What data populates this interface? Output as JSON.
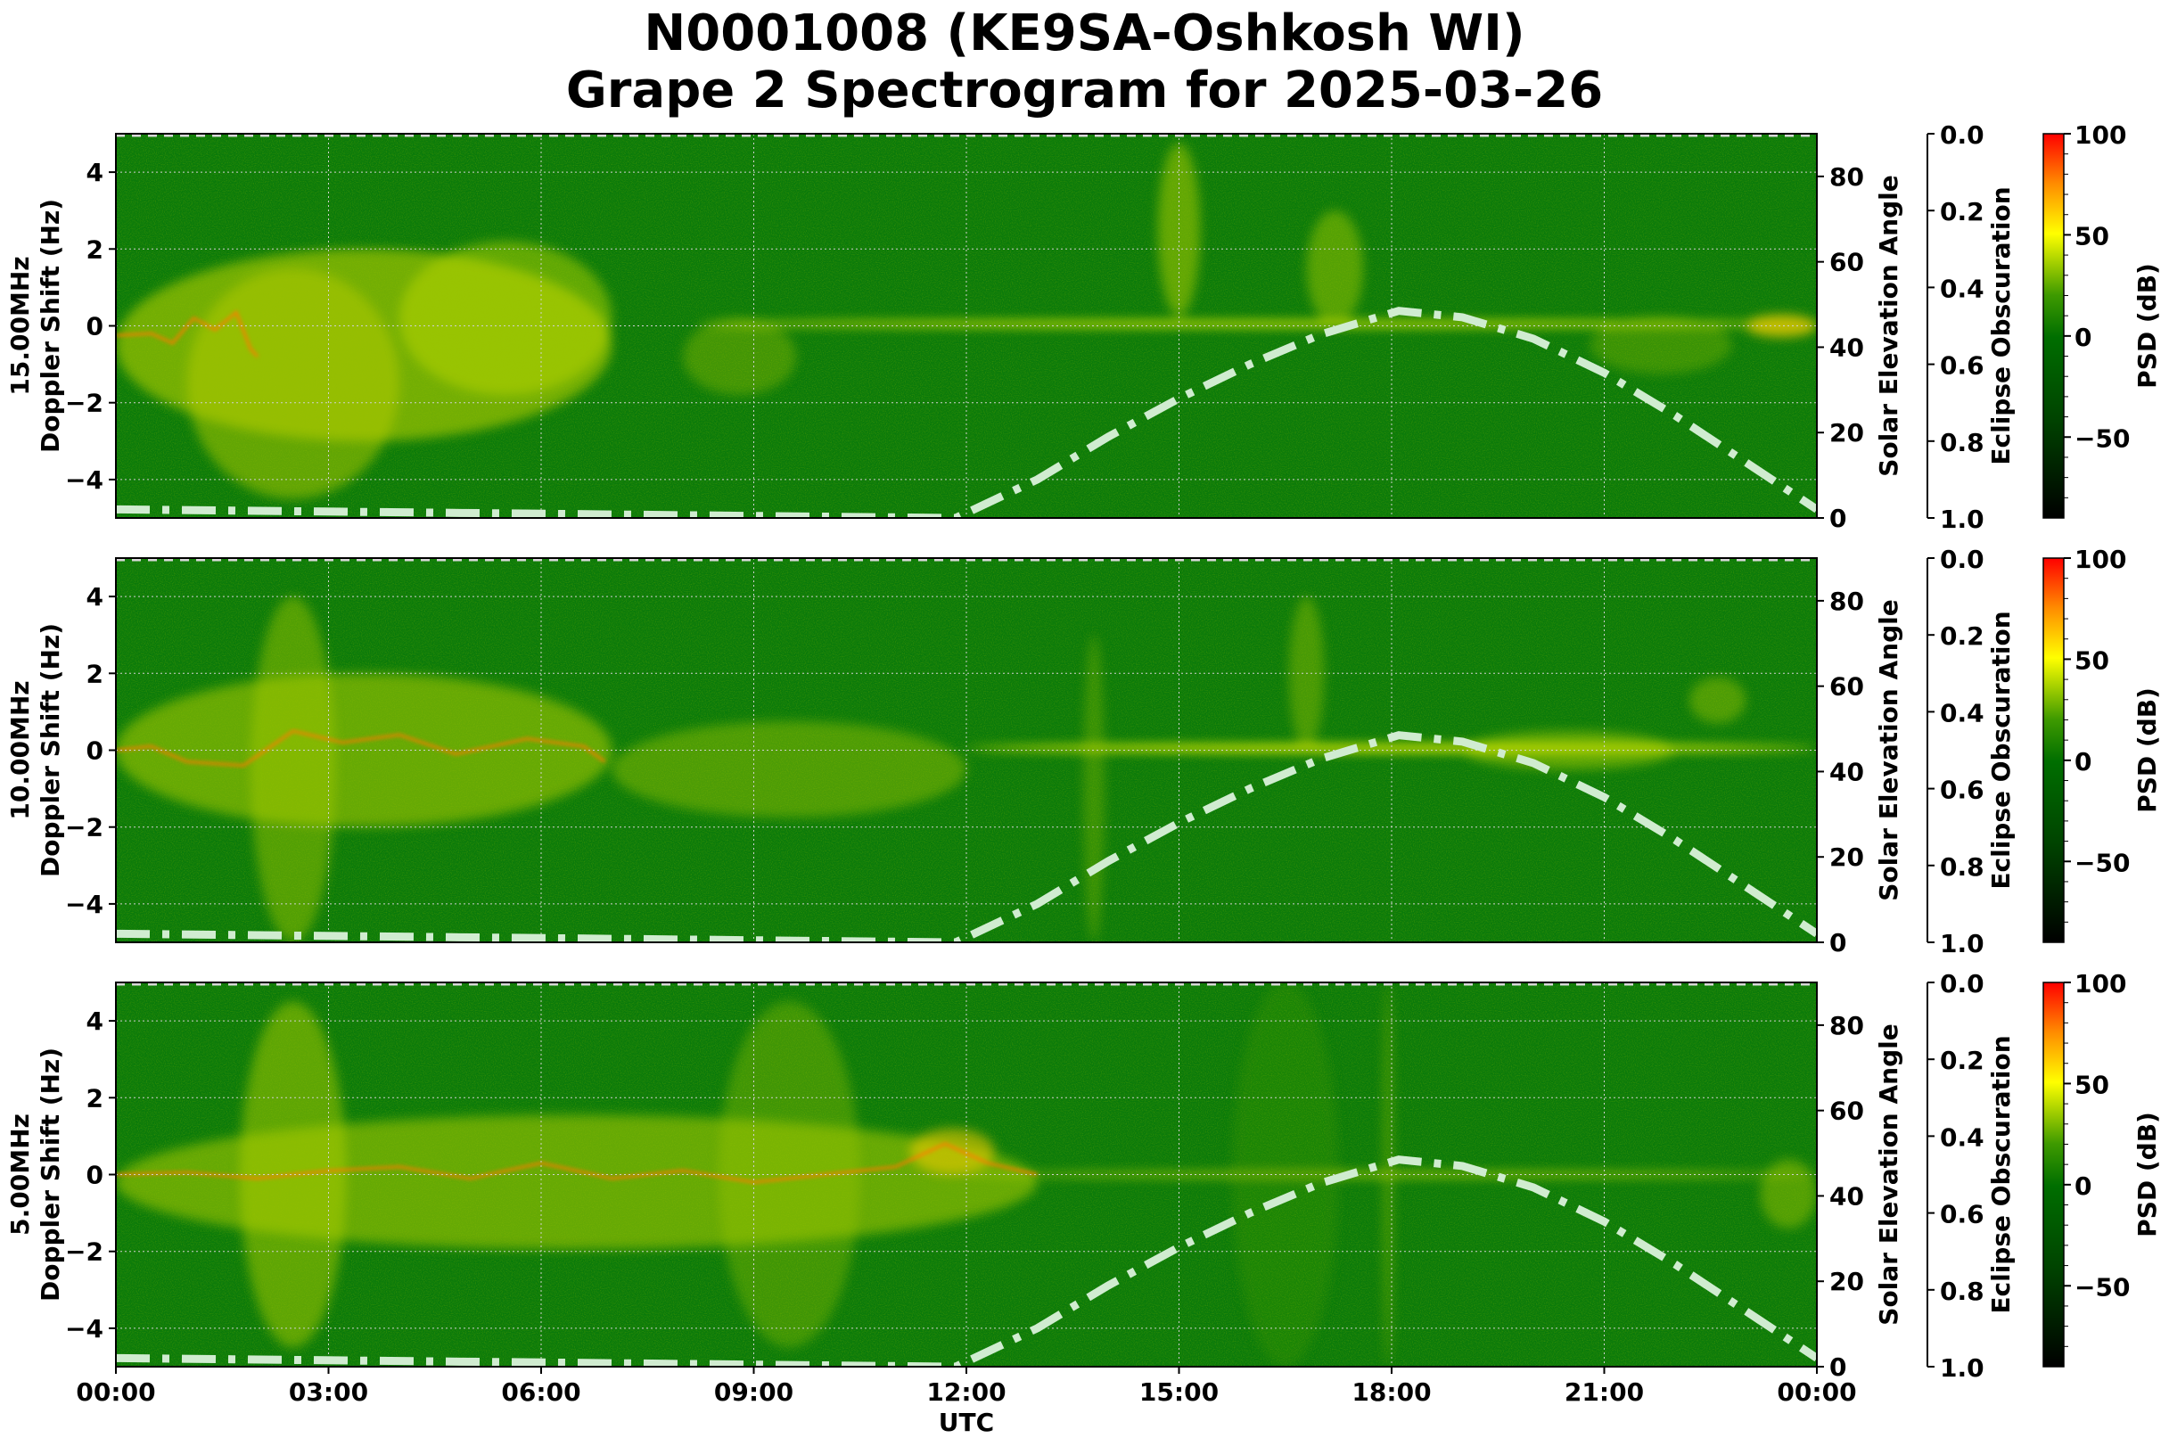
{
  "title": {
    "line1": "N0001008 (KE9SA-Oshkosh WI)",
    "line2": "Grape 2 Spectrogram for 2025-03-26"
  },
  "colors": {
    "background_green": "#0a7a0a",
    "colormap": [
      "#000000",
      "#006400",
      "#008000",
      "#ffff00",
      "#ff0000"
    ],
    "solar_curve": "#d0ecd0",
    "grid": "#c8c8c8"
  },
  "chart_data": {
    "type": "heatmap",
    "title": "N0001008 (KE9SA-Oshkosh WI) Grape 2 Spectrogram for 2025-03-26",
    "xlabel": "UTC",
    "x_ticks": [
      "00:00",
      "03:00",
      "06:00",
      "09:00",
      "12:00",
      "15:00",
      "18:00",
      "21:00",
      "00:00"
    ],
    "x_range_hours": [
      0,
      24
    ],
    "panels": [
      {
        "frequency": "15.00MHz",
        "ylabel": "15.00MHz\nDoppler Shift (Hz)",
        "ylabel_line1": "15.00MHz",
        "ylabel_line2": "Doppler Shift (Hz)",
        "ylim": [
          -5,
          5
        ],
        "y_ticks": [
          4,
          2,
          0,
          -2,
          -4
        ],
        "y_tick_labels": [
          "4",
          "2",
          "0",
          "−2",
          "−4"
        ],
        "notes": "Strong diffuse yellow Doppler spread 00:00-07:00 with orange trace near -0.3 Hz 00:00-02:00; weak 07:00-12:00; narrow carrier at 0 Hz from ~14:30 to 24:00; spikes near 15:00 (to +5 Hz) and 17:00 (+3 Hz)."
      },
      {
        "frequency": "10.00MHz",
        "ylabel_line1": "10.00MHz",
        "ylabel_line2": "Doppler Shift (Hz)",
        "ylim": [
          -5,
          5
        ],
        "y_ticks": [
          4,
          2,
          0,
          -2,
          -4
        ],
        "y_tick_labels": [
          "4",
          "2",
          "0",
          "−2",
          "−4"
        ],
        "notes": "Orange trace near 0 Hz 00:00-07:00 with vertical broadband streaks 02:00-03:30; broad yellow spread 07:00-12:00 trending to -1 Hz; carrier near 0 Hz 12:30-24:00; feature near 16:45 reaching +4 Hz, and +1.5 Hz near 22:30."
      },
      {
        "frequency": "5.00MHz",
        "ylabel_line1": "5.00MHz",
        "ylabel_line2": "Doppler Shift (Hz)",
        "ylim": [
          -5,
          5
        ],
        "y_ticks": [
          4,
          2,
          0,
          -2,
          -4
        ],
        "y_tick_labels": [
          "4",
          "2",
          "0",
          "−2",
          "−4"
        ],
        "notes": "Broad yellow spread with orange trace near 0 Hz from 00:00 to ~13:00 with peak +0.8 Hz near 12:00; narrow carrier at 0 Hz after 13:00; vertical streak at ~18:00."
      }
    ],
    "solar_elevation": {
      "ylabel": "Solar Elevation Angle",
      "ylim": [
        0,
        90
      ],
      "y_ticks": [
        0,
        20,
        40,
        60,
        80
      ],
      "line_style": "dash-dot",
      "points_hours": [
        0,
        11.85,
        13,
        14,
        15,
        16,
        17,
        18,
        18.1,
        19,
        20,
        21,
        22,
        23,
        24
      ],
      "points_degrees": [
        2,
        0,
        9,
        19,
        28,
        36,
        43,
        48,
        48.5,
        47,
        42,
        34,
        24,
        13,
        2
      ]
    },
    "eclipse_obscuration": {
      "ylabel": "Eclipse Obscuration",
      "ylim": [
        1.0,
        0.0
      ],
      "y_ticks": [
        0.0,
        0.2,
        0.4,
        0.6,
        0.8,
        1.0
      ],
      "y_tick_labels": [
        "0.0",
        "0.2",
        "0.4",
        "0.6",
        "0.8",
        "1.0"
      ]
    },
    "colorbar": {
      "label": "PSD (dB)",
      "range": [
        -90,
        100
      ],
      "ticks": [
        100,
        50,
        0,
        -50
      ],
      "tick_labels": [
        "100",
        "50",
        "0",
        "−50"
      ],
      "colormap_stops": [
        {
          "value": -90,
          "color": "#000000"
        },
        {
          "value": -40,
          "color": "#004d00"
        },
        {
          "value": 0,
          "color": "#007000"
        },
        {
          "value": 20,
          "color": "#4aa000"
        },
        {
          "value": 50,
          "color": "#ffff00"
        },
        {
          "value": 75,
          "color": "#ff8c00"
        },
        {
          "value": 100,
          "color": "#ff0000"
        }
      ]
    },
    "grid": true
  }
}
